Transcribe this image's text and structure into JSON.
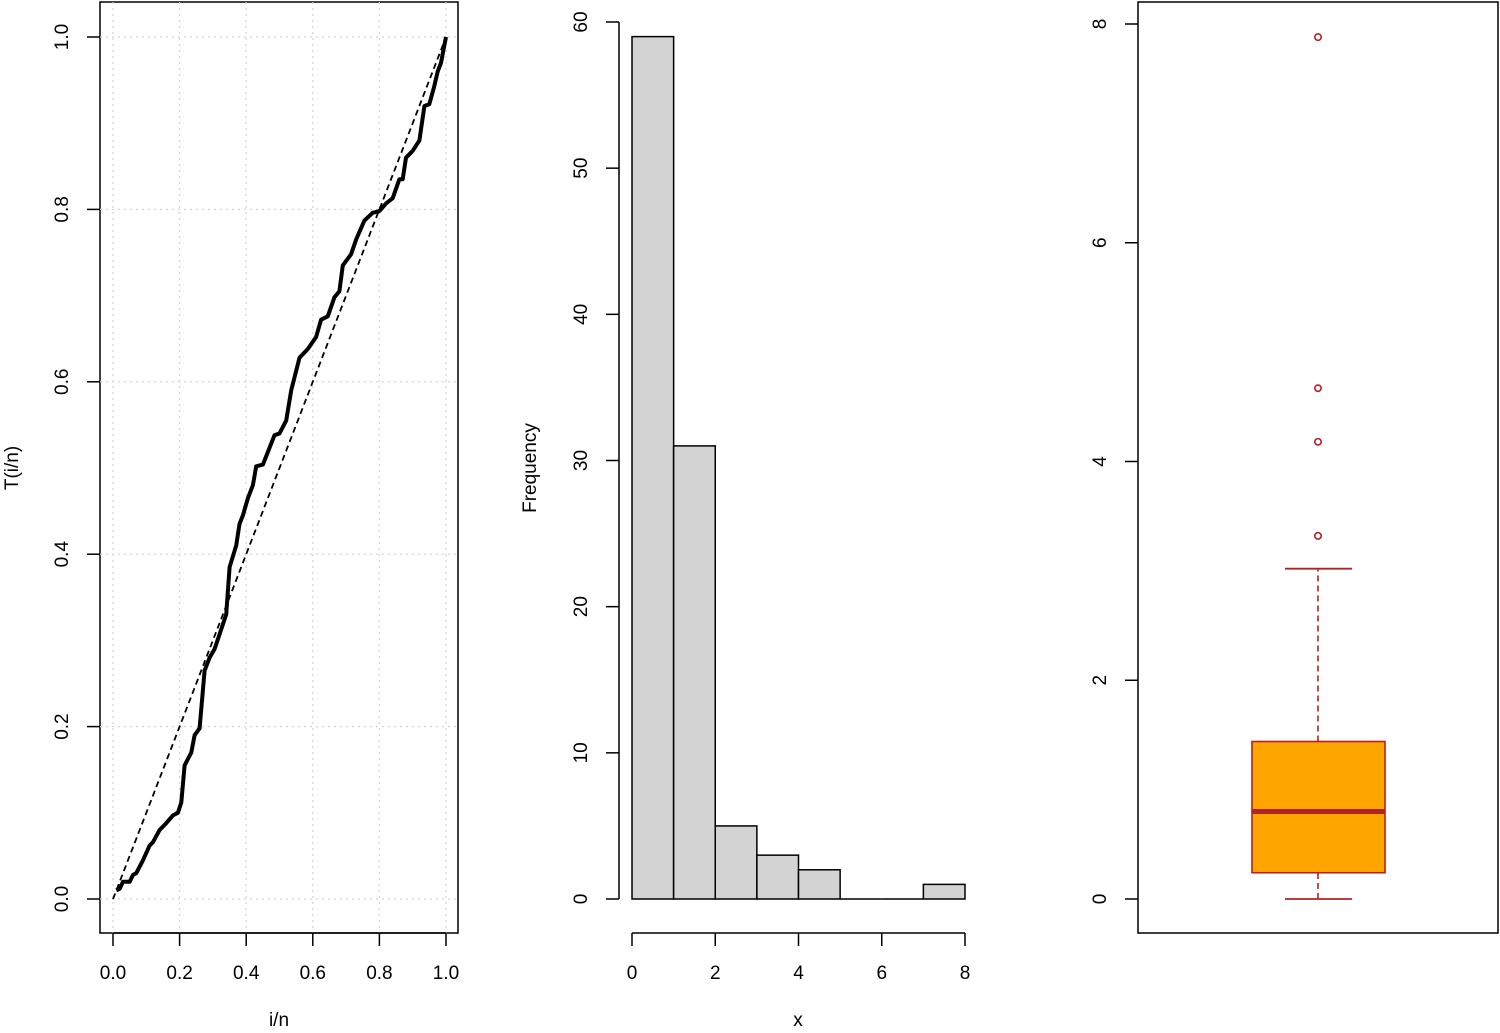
{
  "chart_data": [
    {
      "type": "line",
      "xlabel": "i/n",
      "ylabel": "T(i/n)",
      "xlim": [
        0,
        1
      ],
      "ylim": [
        0,
        1
      ],
      "x_ticks": [
        "0.0",
        "0.2",
        "0.4",
        "0.6",
        "0.8",
        "1.0"
      ],
      "y_ticks": [
        "0.0",
        "0.2",
        "0.4",
        "0.6",
        "0.8",
        "1.0"
      ],
      "grid": true,
      "series": [
        {
          "style": "solid-thick",
          "color": "#000000",
          "points": [
            [
              0.01,
              0.01
            ],
            [
              0.02,
              0.012
            ],
            [
              0.03,
              0.02
            ],
            [
              0.05,
              0.02
            ],
            [
              0.06,
              0.028
            ],
            [
              0.07,
              0.03
            ],
            [
              0.09,
              0.045
            ],
            [
              0.11,
              0.062
            ],
            [
              0.12,
              0.066
            ],
            [
              0.14,
              0.08
            ],
            [
              0.16,
              0.088
            ],
            [
              0.18,
              0.097
            ],
            [
              0.195,
              0.1
            ],
            [
              0.205,
              0.112
            ],
            [
              0.215,
              0.155
            ],
            [
              0.235,
              0.17
            ],
            [
              0.245,
              0.19
            ],
            [
              0.26,
              0.198
            ],
            [
              0.275,
              0.265
            ],
            [
              0.29,
              0.28
            ],
            [
              0.305,
              0.29
            ],
            [
              0.34,
              0.33
            ],
            [
              0.35,
              0.385
            ],
            [
              0.37,
              0.41
            ],
            [
              0.38,
              0.435
            ],
            [
              0.39,
              0.445
            ],
            [
              0.405,
              0.465
            ],
            [
              0.42,
              0.48
            ],
            [
              0.43,
              0.502
            ],
            [
              0.45,
              0.504
            ],
            [
              0.485,
              0.538
            ],
            [
              0.5,
              0.54
            ],
            [
              0.52,
              0.555
            ],
            [
              0.535,
              0.59
            ],
            [
              0.56,
              0.628
            ],
            [
              0.585,
              0.638
            ],
            [
              0.61,
              0.652
            ],
            [
              0.625,
              0.672
            ],
            [
              0.645,
              0.676
            ],
            [
              0.665,
              0.698
            ],
            [
              0.68,
              0.705
            ],
            [
              0.69,
              0.735
            ],
            [
              0.715,
              0.748
            ],
            [
              0.73,
              0.765
            ],
            [
              0.755,
              0.787
            ],
            [
              0.78,
              0.796
            ],
            [
              0.8,
              0.798
            ],
            [
              0.82,
              0.807
            ],
            [
              0.84,
              0.813
            ],
            [
              0.86,
              0.835
            ],
            [
              0.87,
              0.835
            ],
            [
              0.88,
              0.86
            ],
            [
              0.9,
              0.868
            ],
            [
              0.92,
              0.88
            ],
            [
              0.935,
              0.92
            ],
            [
              0.95,
              0.922
            ],
            [
              0.965,
              0.943
            ],
            [
              0.975,
              0.96
            ],
            [
              0.985,
              0.97
            ],
            [
              0.995,
              0.99
            ],
            [
              1.0,
              1.0
            ]
          ]
        },
        {
          "style": "dashed",
          "color": "#000000",
          "points": [
            [
              0,
              0
            ],
            [
              1,
              1
            ]
          ]
        }
      ]
    },
    {
      "type": "bar",
      "xlabel": "x",
      "ylabel": "Frequency",
      "bin_edges": [
        0,
        1,
        2,
        3,
        4,
        5,
        6,
        7,
        8
      ],
      "values": [
        59,
        31,
        5,
        3,
        2,
        0,
        0,
        1
      ],
      "xlim": [
        0,
        8
      ],
      "ylim": [
        0,
        60
      ],
      "x_ticks": [
        "0",
        "2",
        "4",
        "6",
        "8"
      ],
      "y_ticks": [
        "0",
        "10",
        "20",
        "30",
        "40",
        "50",
        "60"
      ],
      "bar_fill": "#d3d3d3",
      "bar_stroke": "#000000"
    },
    {
      "type": "box",
      "ylim": [
        0,
        8
      ],
      "y_ticks": [
        "0",
        "2",
        "4",
        "6",
        "8"
      ],
      "whisker_low": 0.0,
      "q1": 0.24,
      "median": 0.8,
      "q3": 1.44,
      "whisker_high": 3.02,
      "outliers": [
        3.32,
        4.18,
        4.67,
        7.88
      ],
      "box_fill": "#ffa500",
      "line_color": "#b22222"
    }
  ]
}
